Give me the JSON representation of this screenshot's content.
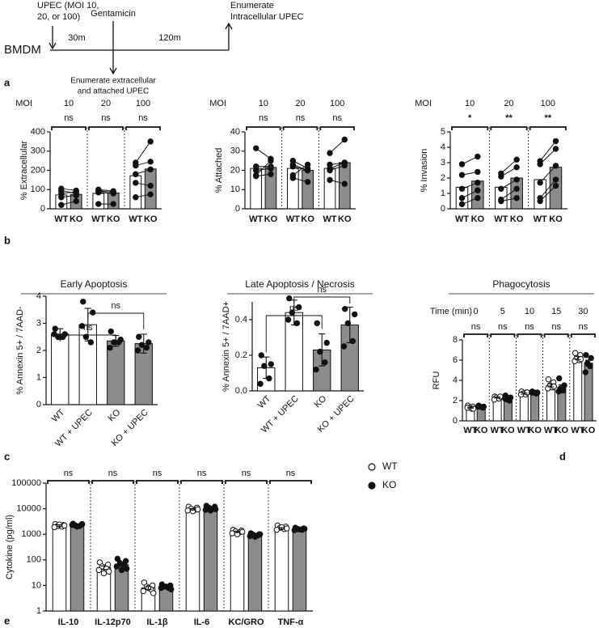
{
  "panel_labels": [
    "a",
    "b",
    "c",
    "d",
    "e"
  ],
  "diagram": {
    "cell": "BMDM",
    "infection": [
      "UPEC (MOI 10,",
      "20, or 100)"
    ],
    "gentamicin": "Gentamicin",
    "first_interval": "30m",
    "second_interval": "120m",
    "intracellular": [
      "Enumerate",
      "Intracellular UPEC"
    ],
    "extracellular": [
      "Enumerate extracellular",
      "and attached UPEC"
    ]
  },
  "chart_data": [
    {
      "type": "paired_bar",
      "ylabel": "% Extracellular",
      "group_title": "MOI",
      "groups": [
        "10",
        "20",
        "100"
      ],
      "significance": [
        "ns",
        "ns",
        "ns"
      ],
      "ylim": [
        0,
        400
      ],
      "yticks": [
        0,
        100,
        200,
        300,
        400
      ],
      "series": [
        {
          "name": "WT",
          "color": "#ffffff",
          "values": [
            72,
            80,
            172
          ],
          "points": [
            [
              105,
              95,
              60,
              20,
              80
            ],
            [
              100,
              95,
              85,
              25,
              90
            ],
            [
              240,
              225,
              180,
              60,
              135
            ]
          ]
        },
        {
          "name": "KO",
          "color": "#8c8c8c",
          "values": [
            75,
            82,
            207
          ],
          "points": [
            [
              95,
              80,
              70,
              40,
              88
            ],
            [
              92,
              85,
              80,
              25,
              88
            ],
            [
              350,
              245,
              205,
              75,
              120
            ]
          ]
        }
      ]
    },
    {
      "type": "paired_bar",
      "ylabel": "% Attached",
      "group_title": "MOI",
      "groups": [
        "10",
        "20",
        "100"
      ],
      "significance": [
        "ns",
        "ns",
        "ns"
      ],
      "ylim": [
        0,
        40
      ],
      "yticks": [
        0,
        10,
        20,
        30,
        40
      ],
      "series": [
        {
          "name": "WT",
          "color": "#ffffff",
          "values": [
            21,
            21,
            21
          ],
          "points": [
            [
              31.5,
              22,
              20,
              17.5,
              17
            ],
            [
              25,
              23,
              22,
              17.5,
              16
            ],
            [
              29,
              23,
              21,
              20,
              15
            ]
          ]
        },
        {
          "name": "KO",
          "color": "#8c8c8c",
          "values": [
            21.5,
            20,
            24
          ],
          "points": [
            [
              26,
              22,
              21,
              25,
              18
            ],
            [
              21,
              20,
              20,
              23,
              14
            ],
            [
              36,
              24,
              24,
              22.5,
              13
            ]
          ]
        }
      ]
    },
    {
      "type": "paired_bar",
      "ylabel": "% Invasion",
      "group_title": "MOI",
      "groups": [
        "10",
        "20",
        "100"
      ],
      "significance": [
        "*",
        "**",
        "**"
      ],
      "ylim": [
        0,
        5
      ],
      "yticks": [
        0,
        1,
        2,
        3,
        4,
        5
      ],
      "series": [
        {
          "name": "WT",
          "color": "#ffffff",
          "values": [
            1.4,
            1.4,
            1.9
          ],
          "points": [
            [
              2.9,
              2.2,
              1.3,
              0.7,
              0.3
            ],
            [
              2.3,
              2.1,
              1.3,
              0.6,
              0.5
            ],
            [
              3.1,
              2.9,
              1.7,
              0.7,
              0.5
            ]
          ]
        },
        {
          "name": "KO",
          "color": "#8c8c8c",
          "values": [
            1.8,
            2.0,
            2.7
          ],
          "points": [
            [
              3.4,
              2.4,
              1.7,
              1.2,
              0.7
            ],
            [
              3.2,
              2.7,
              1.9,
              1.3,
              0.7
            ],
            [
              4.4,
              3.9,
              2.8,
              1.9,
              1.5
            ]
          ]
        }
      ]
    },
    {
      "type": "bar",
      "title": "Early Apoptosis",
      "ylabel": "% Annexin 5+ / 7AAD-",
      "categories": [
        "WT",
        "WT + UPEC",
        "KO",
        "KO + UPEC"
      ],
      "colors": [
        "#ffffff",
        "#ffffff",
        "#8c8c8c",
        "#8c8c8c"
      ],
      "values": [
        2.6,
        2.95,
        2.35,
        2.25
      ],
      "errors": [
        0.2,
        0.6,
        0.2,
        0.35
      ],
      "points": [
        [
          2.8,
          2.6,
          2.5,
          2.5,
          2.6
        ],
        [
          3.8,
          3.4,
          2.5,
          2.3,
          2.9
        ],
        [
          2.7,
          2.4,
          2.3,
          2.3,
          2.1
        ],
        [
          2.5,
          2.3,
          2.2,
          2.1,
          2.0
        ]
      ],
      "comparisons": [
        "ns",
        "ns"
      ],
      "ylim": [
        0,
        4
      ],
      "yticks": [
        0,
        1,
        2,
        3,
        4
      ]
    },
    {
      "type": "bar",
      "title": "Late Apoptosis / Necrosis",
      "ylabel": "% Annexin 5+ / 7AAD+",
      "categories": [
        "WT",
        "WT + UPEC",
        "KO",
        "KO + UPEC"
      ],
      "colors": [
        "#ffffff",
        "#ffffff",
        "#8c8c8c",
        "#8c8c8c"
      ],
      "values": [
        0.13,
        0.44,
        0.23,
        0.37
      ],
      "errors": [
        0.06,
        0.07,
        0.09,
        0.1
      ],
      "points": [
        [
          0.2,
          0.15,
          0.14,
          0.07,
          0.04
        ],
        [
          0.52,
          0.47,
          0.44,
          0.38,
          0.4
        ],
        [
          0.38,
          0.27,
          0.22,
          0.16,
          0.12
        ],
        [
          0.46,
          0.43,
          0.38,
          0.28,
          0.25
        ]
      ],
      "comparisons": [
        "ns",
        "ns"
      ],
      "ylim": [
        0,
        0.5
      ],
      "yticks": [
        {
          "value": 0,
          "label": "0.0"
        },
        0.2,
        0.4
      ]
    },
    {
      "type": "grouped_bar",
      "title": "Phagocytosis",
      "ylabel": "RFU",
      "group_title": "Time (min)",
      "groups": [
        "0",
        "5",
        "10",
        "15",
        "30"
      ],
      "significance": [
        "ns",
        "ns",
        "ns",
        "ns",
        "ns"
      ],
      "ylim": [
        0,
        8
      ],
      "yticks": [
        0,
        2,
        4,
        6,
        8
      ],
      "series": [
        {
          "name": "WT",
          "color": "#ffffff",
          "marker": "open",
          "values": [
            1.3,
            2.3,
            2.7,
            3.5,
            6.2
          ],
          "errors": [
            0.05,
            0.05,
            0.07,
            0.15,
            0.15
          ],
          "points": [
            [
              1.5,
              1.4,
              1.3,
              1.2,
              1.3,
              1.2
            ],
            [
              2.4,
              2.3,
              2.3,
              2.2,
              2.1,
              2.4
            ],
            [
              2.9,
              2.8,
              2.7,
              2.6,
              2.6,
              2.8
            ],
            [
              4.1,
              3.8,
              3.5,
              3.3,
              3.2,
              3.4
            ],
            [
              6.7,
              6.5,
              6.2,
              6.0,
              5.9,
              6.1
            ]
          ]
        },
        {
          "name": "KO",
          "color": "#8c8c8c",
          "marker": "filled",
          "values": [
            1.4,
            2.2,
            2.8,
            3.3,
            5.7
          ],
          "errors": [
            0.04,
            0.1,
            0.04,
            0.25,
            0.3
          ],
          "points": [
            [
              1.5,
              1.4,
              1.4,
              1.3,
              1.4
            ],
            [
              2.5,
              2.3,
              2.1,
              2.0,
              2.2
            ],
            [
              2.9,
              2.8,
              2.8,
              2.7,
              2.8
            ],
            [
              4.2,
              3.5,
              3.2,
              3.0,
              2.9
            ],
            [
              6.5,
              6.2,
              5.7,
              5.4,
              4.8
            ]
          ]
        }
      ]
    },
    {
      "type": "grouped_bar",
      "ylabel": "Cytokine (pg/ml)",
      "log": true,
      "legend": "right",
      "categories": [
        "IL-10",
        "IL-12p70",
        "IL-1β",
        "IL-6",
        "KC/GRO",
        "TNF-α"
      ],
      "significance": [
        "ns",
        "ns",
        "ns",
        "ns",
        "ns",
        "ns"
      ],
      "ylim": [
        1,
        100000
      ],
      "yticks": [
        1,
        10,
        100,
        1000,
        10000,
        100000
      ],
      "series": [
        {
          "name": "WT",
          "color": "#ffffff",
          "marker": "open",
          "values": [
            2200,
            50,
            8,
            9500,
            1250,
            1700
          ],
          "errors": [
            150,
            8,
            1,
            700,
            80,
            120
          ],
          "points": [
            [
              2500,
              2300,
              2100,
              2000,
              1900,
              2200,
              2400
            ],
            [
              80,
              65,
              55,
              45,
              40,
              35,
              30
            ],
            [
              13,
              10,
              9,
              7,
              6,
              5,
              8
            ],
            [
              12000,
              11000,
              10000,
              9000,
              8500,
              9500,
              8000
            ],
            [
              1500,
              1400,
              1300,
              1200,
              1100,
              1250,
              1000
            ],
            [
              2200,
              2000,
              1800,
              1600,
              1500,
              1700,
              1900
            ]
          ]
        },
        {
          "name": "KO",
          "color": "#8c8c8c",
          "marker": "filled",
          "values": [
            2300,
            65,
            9,
            10000,
            950,
            1600
          ],
          "errors": [
            120,
            10,
            0.6,
            600,
            50,
            70
          ],
          "points": [
            [
              2600,
              2400,
              2200,
              2100,
              2300,
              2500,
              2000
            ],
            [
              110,
              90,
              75,
              65,
              55,
              45,
              40
            ],
            [
              11,
              10,
              9,
              8,
              8,
              7,
              9
            ],
            [
              13000,
              12000,
              11000,
              10000,
              9000,
              9500,
              8500
            ],
            [
              1100,
              1000,
              950,
              900,
              850,
              1000,
              800
            ],
            [
              1800,
              1700,
              1600,
              1500,
              1450,
              1650,
              1550
            ]
          ]
        }
      ]
    }
  ]
}
